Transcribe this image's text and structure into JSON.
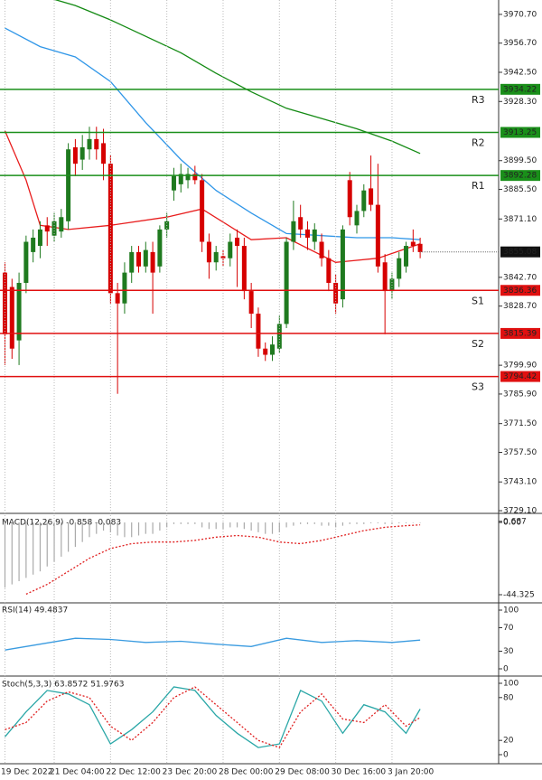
{
  "chart_data": [
    {
      "type": "candlestick",
      "categories": [
        "19 Dec 2022",
        null,
        null,
        null,
        null,
        null,
        null,
        "21 Dec 04:00",
        null,
        null,
        null,
        null,
        null,
        null,
        null,
        "22 Dec 12:00",
        null,
        null,
        null,
        null,
        null,
        null,
        null,
        "23 Dec 20:00",
        null,
        null,
        null,
        null,
        null,
        null,
        null,
        "28 Dec 00:00",
        null,
        null,
        null,
        null,
        null,
        null,
        null,
        "29 Dec 08:00",
        null,
        null,
        null,
        null,
        null,
        null,
        null,
        "30 Dec 16:00",
        null,
        null,
        null,
        null,
        null,
        null,
        null,
        "3 Jan 20:00",
        null,
        null,
        null,
        null
      ],
      "open": [
        3845,
        3838,
        3812,
        3840,
        3855,
        3858,
        3868,
        3863,
        3865,
        3870,
        3906,
        3900,
        3905,
        3910,
        3908,
        3898,
        3835,
        3830,
        3845,
        3855,
        3848,
        3855,
        3848,
        3866,
        3885,
        3888,
        3890,
        3893,
        3890,
        3860,
        3850,
        3853,
        3852,
        3862,
        3858,
        3836,
        3825,
        3808,
        3805,
        3808,
        3820,
        3860,
        3872,
        3866,
        3860,
        3860,
        3852,
        3840,
        3832,
        3890,
        3868,
        3875,
        3886,
        3878,
        3850,
        3836,
        3842,
        3848,
        3860,
        3859
      ],
      "high": [
        3850,
        3842,
        3845,
        3863,
        3866,
        3870,
        3872,
        3874,
        3876,
        3908,
        3910,
        3912,
        3916,
        3916,
        3915,
        3902,
        3840,
        3850,
        3858,
        3858,
        3860,
        3860,
        3868,
        3874,
        3896,
        3898,
        3896,
        3897,
        3893,
        3864,
        3858,
        3856,
        3864,
        3866,
        3862,
        3840,
        3828,
        3811,
        3814,
        3824,
        3862,
        3880,
        3878,
        3870,
        3869,
        3864,
        3856,
        3844,
        3868,
        3894,
        3878,
        3888,
        3902,
        3898,
        3854,
        3845,
        3855,
        3860,
        3866,
        3862
      ],
      "low": [
        3800,
        3803,
        3800,
        3835,
        3850,
        3852,
        3858,
        3860,
        3862,
        3866,
        3892,
        3895,
        3900,
        3900,
        3890,
        3830,
        3786,
        3825,
        3840,
        3845,
        3845,
        3825,
        3845,
        3862,
        3880,
        3884,
        3886,
        3888,
        3855,
        3842,
        3846,
        3848,
        3848,
        3838,
        3832,
        3818,
        3804,
        3802,
        3802,
        3806,
        3818,
        3856,
        3862,
        3856,
        3856,
        3848,
        3836,
        3825,
        3828,
        3868,
        3864,
        3872,
        3875,
        3845,
        3815,
        3832,
        3838,
        3845,
        3855,
        3852
      ],
      "close": [
        3815,
        3808,
        3840,
        3860,
        3862,
        3866,
        3865,
        3870,
        3872,
        3905,
        3898,
        3906,
        3910,
        3905,
        3898,
        3835,
        3830,
        3845,
        3855,
        3848,
        3856,
        3845,
        3866,
        3870,
        3892,
        3893,
        3893,
        3890,
        3860,
        3850,
        3855,
        3852,
        3860,
        3858,
        3836,
        3825,
        3808,
        3805,
        3810,
        3820,
        3860,
        3870,
        3866,
        3862,
        3866,
        3852,
        3840,
        3830,
        3866,
        3872,
        3875,
        3885,
        3878,
        3848,
        3836,
        3842,
        3852,
        3858,
        3858,
        3855
      ],
      "up_color": "#1f7a1f",
      "down_color": "#d60000",
      "ylim": [
        3727.8,
        3977.7
      ],
      "yticks": [
        {
          "value": 3970.7,
          "label": "3970.70"
        },
        {
          "value": 3956.7,
          "label": "3956.70"
        },
        {
          "value": 3942.5,
          "label": "3942.50"
        },
        {
          "value": 3928.3,
          "label": "3928.30"
        },
        {
          "value": 3899.5,
          "label": "3899.50"
        },
        {
          "value": 3885.5,
          "label": "3885.50"
        },
        {
          "value": 3871.1,
          "label": "3871.10"
        },
        {
          "value": 3842.7,
          "label": "3842.70"
        },
        {
          "value": 3828.7,
          "label": "3828.70"
        },
        {
          "value": 3799.9,
          "label": "3799.90"
        },
        {
          "value": 3785.9,
          "label": "3785.90"
        },
        {
          "value": 3771.5,
          "label": "3771.50"
        },
        {
          "value": 3757.5,
          "label": "3757.50"
        },
        {
          "value": 3743.1,
          "label": "3743.10"
        },
        {
          "value": 3729.1,
          "label": "3729.10"
        }
      ],
      "levels": [
        {
          "name": "R3",
          "value": 3934.22,
          "color": "#1a8f1a"
        },
        {
          "name": "R2",
          "value": 3913.25,
          "color": "#1a8f1a"
        },
        {
          "name": "R1",
          "value": 3892.28,
          "color": "#1a8f1a"
        },
        {
          "name": "S1",
          "value": 3836.36,
          "color": "#e01010"
        },
        {
          "name": "S2",
          "value": 3815.39,
          "color": "#e01010"
        },
        {
          "name": "S3",
          "value": 3794.42,
          "color": "#e01010"
        }
      ],
      "last_price": 3855.08,
      "series": [
        {
          "color": "#138a13",
          "x": [
            7,
            10,
            15,
            20,
            25,
            30,
            35,
            40,
            45,
            50,
            55,
            59
          ],
          "values": [
            3978,
            3975,
            3968,
            3960,
            3952,
            3942,
            3933,
            3925,
            3920,
            3915,
            3909,
            3903
          ]
        },
        {
          "color": "#2f96e8",
          "x": [
            0,
            5,
            10,
            15,
            20,
            25,
            30,
            35,
            40,
            45,
            50,
            55,
            59
          ],
          "values": [
            3964,
            3955,
            3950,
            3938,
            3918,
            3900,
            3885,
            3874,
            3864,
            3863,
            3862,
            3862,
            3861
          ]
        },
        {
          "color": "#e81c1c",
          "x": [
            0,
            3,
            5,
            9,
            15,
            23,
            28,
            35,
            40,
            47,
            53,
            59
          ],
          "values": [
            3914,
            3890,
            3868,
            3866,
            3868,
            3872,
            3876,
            3861,
            3862,
            3850,
            3852,
            3859
          ]
        }
      ]
    },
    {
      "type": "bar",
      "title": "MACD(12,26,9) -0.858 -0.083",
      "color": "#aaaaaa",
      "values": [
        -40,
        -38,
        -36,
        -34,
        -32,
        -30,
        -27,
        -24,
        -21,
        -18,
        -15,
        -12,
        -9,
        -7,
        -5,
        -6,
        -8,
        -9,
        -9,
        -8,
        -7,
        -7,
        -5,
        -3,
        -1,
        -1,
        -1,
        -1,
        -3,
        -4,
        -4,
        -4,
        -3,
        -3,
        -4,
        -5,
        -6,
        -7,
        -7,
        -6,
        -3,
        -2,
        -1,
        -1,
        -1,
        -2,
        -2,
        -3,
        -2,
        -1,
        -1,
        -1,
        -0.5,
        -0.5,
        -1,
        -1,
        -0.5,
        -0.5,
        -0.3,
        -0.3
      ],
      "ylim": [
        -48.2,
        3.9
      ],
      "yticks": [
        0.687,
        {
          "value": 0,
          "label": "0.00"
        },
        -44.325
      ],
      "series": [
        {
          "color": "#e02020",
          "style": "dotted",
          "x": [
            3,
            6,
            9,
            12,
            15,
            18,
            21,
            24,
            27,
            30,
            33,
            36,
            39,
            42,
            45,
            48,
            51,
            54,
            57,
            59
          ],
          "values": [
            -44,
            -38,
            -30,
            -22,
            -16,
            -13,
            -12,
            -12,
            -11,
            -9,
            -8,
            -9,
            -12,
            -13,
            -11,
            -8,
            -5,
            -3,
            -2,
            -1.5
          ]
        }
      ]
    },
    {
      "type": "line",
      "title": "RSI(14) 49.4837",
      "ylim": [
        -12.3,
        110.8
      ],
      "yticks": [
        100,
        70,
        30,
        0
      ],
      "series": [
        {
          "color": "#3a9be0",
          "x": [
            0,
            5,
            10,
            15,
            20,
            25,
            30,
            35,
            40,
            45,
            50,
            55,
            59
          ],
          "values": [
            32,
            42,
            52,
            50,
            45,
            47,
            42,
            38,
            52,
            45,
            48,
            45,
            49
          ]
        }
      ]
    },
    {
      "type": "line",
      "title": "Stoch(5,3,3) 63.8572 51.9763",
      "ylim": [
        -12.7,
        107.6
      ],
      "yticks": [
        100,
        80,
        20,
        0
      ],
      "series": [
        {
          "color": "#2aa7a7",
          "x": [
            0,
            3,
            6,
            9,
            12,
            15,
            18,
            21,
            24,
            27,
            30,
            33,
            36,
            39,
            42,
            45,
            48,
            51,
            54,
            57,
            59
          ],
          "values": [
            25,
            60,
            90,
            85,
            70,
            15,
            35,
            60,
            95,
            90,
            55,
            30,
            10,
            15,
            90,
            75,
            30,
            70,
            60,
            30,
            63.86
          ]
        },
        {
          "color": "#e02020",
          "style": "dotted",
          "x": [
            0,
            3,
            6,
            9,
            12,
            15,
            18,
            21,
            24,
            27,
            30,
            33,
            36,
            39,
            42,
            45,
            48,
            51,
            54,
            57,
            59
          ],
          "values": [
            35,
            45,
            75,
            88,
            80,
            40,
            20,
            45,
            80,
            95,
            70,
            45,
            20,
            10,
            60,
            85,
            50,
            45,
            70,
            40,
            51.98
          ]
        }
      ]
    }
  ]
}
